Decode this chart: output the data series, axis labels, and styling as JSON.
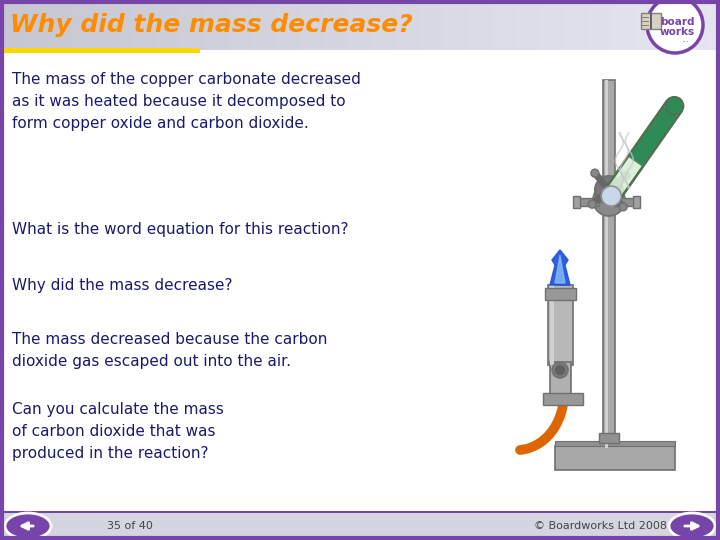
{
  "title": "Why did the mass decrease?",
  "title_color": "#FF8C00",
  "title_bar_gradient_left": "#C8C8D8",
  "title_bar_gradient_right": "#E8E8F0",
  "title_accent_color": "#FFD700",
  "body_bg_color": "#FFFFFF",
  "border_color": "#7744AA",
  "text_color": "#1a1a6e",
  "footer_text_left": "35 of 40",
  "footer_text_right": "© Boardworks Ltd 2008",
  "para1": "The mass of the copper carbonate decreased\nas it was heated because it decomposed to\nform copper oxide and carbon dioxide.",
  "para2": "What is the word equation for this reaction?",
  "para3": "Why did the mass decrease?",
  "para4": "The mass decreased because the carbon\ndioxide gas escaped out into the air.",
  "para5": "Can you calculate the mass\nof carbon dioxide that was\nproduced in the reaction?",
  "nav_color": "#7744AA",
  "logo_border_color": "#7744AA",
  "logo_text_color": "#7744AA",
  "stand_color": "#A8A8A8",
  "stand_edge": "#707070",
  "burner_color": "#B0B0B0",
  "tube_green": "#2E8B57",
  "tube_glass": "#C8E8D8",
  "flame_blue": "#3366FF",
  "flame_light": "#88AAFF",
  "gas_tube_color": "#DD6600",
  "smoke_color": "#C8C8C8"
}
